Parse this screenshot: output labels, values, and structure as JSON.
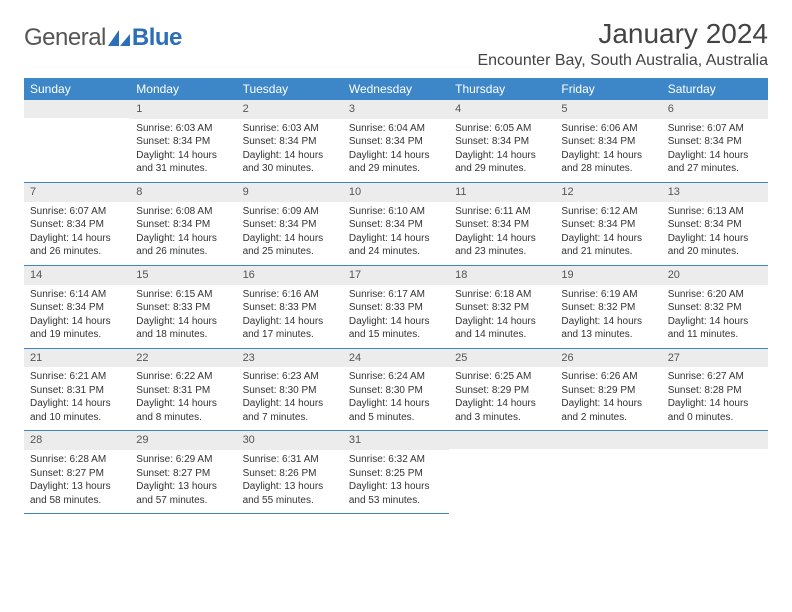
{
  "logo": {
    "text1": "General",
    "text2": "Blue"
  },
  "title": "January 2024",
  "location": "Encounter Bay, South Australia, Australia",
  "colors": {
    "header_bg": "#3d87c9",
    "header_text": "#ffffff",
    "daynum_bg": "#ececec",
    "border": "#3d87c9",
    "body_text": "#333333",
    "title_text": "#444444"
  },
  "fonts": {
    "title_size": 28,
    "location_size": 16,
    "header_size": 12,
    "daynum_size": 11,
    "cell_size": 10
  },
  "daysOfWeek": [
    "Sunday",
    "Monday",
    "Tuesday",
    "Wednesday",
    "Thursday",
    "Friday",
    "Saturday"
  ],
  "weeks": [
    [
      null,
      {
        "n": "1",
        "sr": "6:03 AM",
        "ss": "8:34 PM",
        "dl": "14 hours and 31 minutes."
      },
      {
        "n": "2",
        "sr": "6:03 AM",
        "ss": "8:34 PM",
        "dl": "14 hours and 30 minutes."
      },
      {
        "n": "3",
        "sr": "6:04 AM",
        "ss": "8:34 PM",
        "dl": "14 hours and 29 minutes."
      },
      {
        "n": "4",
        "sr": "6:05 AM",
        "ss": "8:34 PM",
        "dl": "14 hours and 29 minutes."
      },
      {
        "n": "5",
        "sr": "6:06 AM",
        "ss": "8:34 PM",
        "dl": "14 hours and 28 minutes."
      },
      {
        "n": "6",
        "sr": "6:07 AM",
        "ss": "8:34 PM",
        "dl": "14 hours and 27 minutes."
      }
    ],
    [
      {
        "n": "7",
        "sr": "6:07 AM",
        "ss": "8:34 PM",
        "dl": "14 hours and 26 minutes."
      },
      {
        "n": "8",
        "sr": "6:08 AM",
        "ss": "8:34 PM",
        "dl": "14 hours and 26 minutes."
      },
      {
        "n": "9",
        "sr": "6:09 AM",
        "ss": "8:34 PM",
        "dl": "14 hours and 25 minutes."
      },
      {
        "n": "10",
        "sr": "6:10 AM",
        "ss": "8:34 PM",
        "dl": "14 hours and 24 minutes."
      },
      {
        "n": "11",
        "sr": "6:11 AM",
        "ss": "8:34 PM",
        "dl": "14 hours and 23 minutes."
      },
      {
        "n": "12",
        "sr": "6:12 AM",
        "ss": "8:34 PM",
        "dl": "14 hours and 21 minutes."
      },
      {
        "n": "13",
        "sr": "6:13 AM",
        "ss": "8:34 PM",
        "dl": "14 hours and 20 minutes."
      }
    ],
    [
      {
        "n": "14",
        "sr": "6:14 AM",
        "ss": "8:34 PM",
        "dl": "14 hours and 19 minutes."
      },
      {
        "n": "15",
        "sr": "6:15 AM",
        "ss": "8:33 PM",
        "dl": "14 hours and 18 minutes."
      },
      {
        "n": "16",
        "sr": "6:16 AM",
        "ss": "8:33 PM",
        "dl": "14 hours and 17 minutes."
      },
      {
        "n": "17",
        "sr": "6:17 AM",
        "ss": "8:33 PM",
        "dl": "14 hours and 15 minutes."
      },
      {
        "n": "18",
        "sr": "6:18 AM",
        "ss": "8:32 PM",
        "dl": "14 hours and 14 minutes."
      },
      {
        "n": "19",
        "sr": "6:19 AM",
        "ss": "8:32 PM",
        "dl": "14 hours and 13 minutes."
      },
      {
        "n": "20",
        "sr": "6:20 AM",
        "ss": "8:32 PM",
        "dl": "14 hours and 11 minutes."
      }
    ],
    [
      {
        "n": "21",
        "sr": "6:21 AM",
        "ss": "8:31 PM",
        "dl": "14 hours and 10 minutes."
      },
      {
        "n": "22",
        "sr": "6:22 AM",
        "ss": "8:31 PM",
        "dl": "14 hours and 8 minutes."
      },
      {
        "n": "23",
        "sr": "6:23 AM",
        "ss": "8:30 PM",
        "dl": "14 hours and 7 minutes."
      },
      {
        "n": "24",
        "sr": "6:24 AM",
        "ss": "8:30 PM",
        "dl": "14 hours and 5 minutes."
      },
      {
        "n": "25",
        "sr": "6:25 AM",
        "ss": "8:29 PM",
        "dl": "14 hours and 3 minutes."
      },
      {
        "n": "26",
        "sr": "6:26 AM",
        "ss": "8:29 PM",
        "dl": "14 hours and 2 minutes."
      },
      {
        "n": "27",
        "sr": "6:27 AM",
        "ss": "8:28 PM",
        "dl": "14 hours and 0 minutes."
      }
    ],
    [
      {
        "n": "28",
        "sr": "6:28 AM",
        "ss": "8:27 PM",
        "dl": "13 hours and 58 minutes."
      },
      {
        "n": "29",
        "sr": "6:29 AM",
        "ss": "8:27 PM",
        "dl": "13 hours and 57 minutes."
      },
      {
        "n": "30",
        "sr": "6:31 AM",
        "ss": "8:26 PM",
        "dl": "13 hours and 55 minutes."
      },
      {
        "n": "31",
        "sr": "6:32 AM",
        "ss": "8:25 PM",
        "dl": "13 hours and 53 minutes."
      },
      null,
      null,
      null
    ]
  ]
}
